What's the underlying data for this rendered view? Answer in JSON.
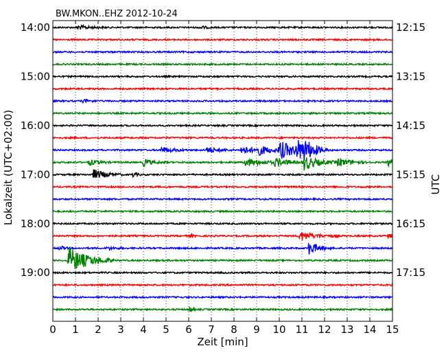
{
  "chart_data": {
    "type": "line",
    "title": "BW.MKON..EHZ 2012-10-24",
    "xlabel": "Zeit  [min]",
    "ylabel_left": "Lokalzeit (UTC+02:00)",
    "ylabel_right": "UTC",
    "xlim": [
      0,
      15
    ],
    "x_ticks": [
      "0",
      "1",
      "2",
      "3",
      "4",
      "5",
      "6",
      "7",
      "8",
      "9",
      "10",
      "11",
      "12",
      "13",
      "14",
      "15"
    ],
    "grid": "vertical dotted",
    "left_ticks": [
      "14:00",
      "15:00",
      "16:00",
      "17:00",
      "18:00",
      "19:00"
    ],
    "right_ticks": [
      "12:15",
      "13:15",
      "14:15",
      "15:15",
      "16:15",
      "17:15"
    ],
    "trace_colors": [
      "#000000",
      "#ff0000",
      "#0000ff",
      "#008000"
    ],
    "traces": [
      {
        "start": "14:00",
        "events": [
          {
            "t": 1.1,
            "amp": 0.35,
            "dur": 0.5
          },
          {
            "t": 6.5,
            "amp": 0.3,
            "dur": 0.2
          }
        ]
      },
      {
        "start": "14:15",
        "events": []
      },
      {
        "start": "14:30",
        "events": []
      },
      {
        "start": "14:45",
        "events": []
      },
      {
        "start": "15:00",
        "events": []
      },
      {
        "start": "15:15",
        "events": []
      },
      {
        "start": "15:30",
        "events": [
          {
            "t": 1.35,
            "amp": 0.3,
            "dur": 0.3
          }
        ]
      },
      {
        "start": "15:45",
        "events": []
      },
      {
        "start": "16:00",
        "events": []
      },
      {
        "start": "16:15",
        "events": []
      },
      {
        "start": "16:30",
        "events": [
          {
            "t": 4.8,
            "amp": 0.5,
            "dur": 0.5
          },
          {
            "t": 6.8,
            "amp": 0.5,
            "dur": 0.5
          },
          {
            "t": 8.3,
            "amp": 0.7,
            "dur": 0.6
          },
          {
            "t": 9.0,
            "amp": 0.8,
            "dur": 0.6
          },
          {
            "t": 10.0,
            "amp": 1.6,
            "dur": 0.7
          },
          {
            "t": 10.75,
            "amp": 1.6,
            "dur": 0.6
          },
          {
            "t": 11.1,
            "amp": 0.9,
            "dur": 0.4
          }
        ]
      },
      {
        "start": "16:45",
        "events": [
          {
            "t": 1.6,
            "amp": 0.5,
            "dur": 0.4
          },
          {
            "t": 4.0,
            "amp": 0.6,
            "dur": 0.4
          },
          {
            "t": 8.5,
            "amp": 0.7,
            "dur": 0.8
          },
          {
            "t": 9.8,
            "amp": 0.6,
            "dur": 0.6
          },
          {
            "t": 11.1,
            "amp": 1.3,
            "dur": 0.6
          },
          {
            "t": 12.6,
            "amp": 0.8,
            "dur": 0.5
          },
          {
            "t": 14.8,
            "amp": 0.7,
            "dur": 0.3
          }
        ]
      },
      {
        "start": "17:00",
        "events": [
          {
            "t": 1.8,
            "amp": 0.9,
            "dur": 0.5
          },
          {
            "t": 3.5,
            "amp": 0.4,
            "dur": 0.2
          }
        ]
      },
      {
        "start": "17:15",
        "events": []
      },
      {
        "start": "17:30",
        "events": []
      },
      {
        "start": "17:45",
        "events": []
      },
      {
        "start": "18:00",
        "events": []
      },
      {
        "start": "18:15",
        "events": [
          {
            "t": 6.1,
            "amp": 0.3,
            "dur": 0.1
          },
          {
            "t": 10.9,
            "amp": 0.8,
            "dur": 0.7
          },
          {
            "t": 14.8,
            "amp": 0.4,
            "dur": 0.2
          }
        ]
      },
      {
        "start": "18:30",
        "events": [
          {
            "t": 0.3,
            "amp": 0.4,
            "dur": 0.2
          },
          {
            "t": 2.4,
            "amp": 0.3,
            "dur": 0.3
          },
          {
            "t": 11.3,
            "amp": 1.2,
            "dur": 0.4
          }
        ]
      },
      {
        "start": "18:45",
        "events": [
          {
            "t": 0.7,
            "amp": 2.4,
            "dur": 0.8
          }
        ]
      },
      {
        "start": "19:00",
        "events": []
      },
      {
        "start": "19:15",
        "events": []
      },
      {
        "start": "19:30",
        "events": []
      },
      {
        "start": "19:45",
        "events": [
          {
            "t": 6.05,
            "amp": 0.6,
            "dur": 0.1
          }
        ]
      }
    ]
  }
}
